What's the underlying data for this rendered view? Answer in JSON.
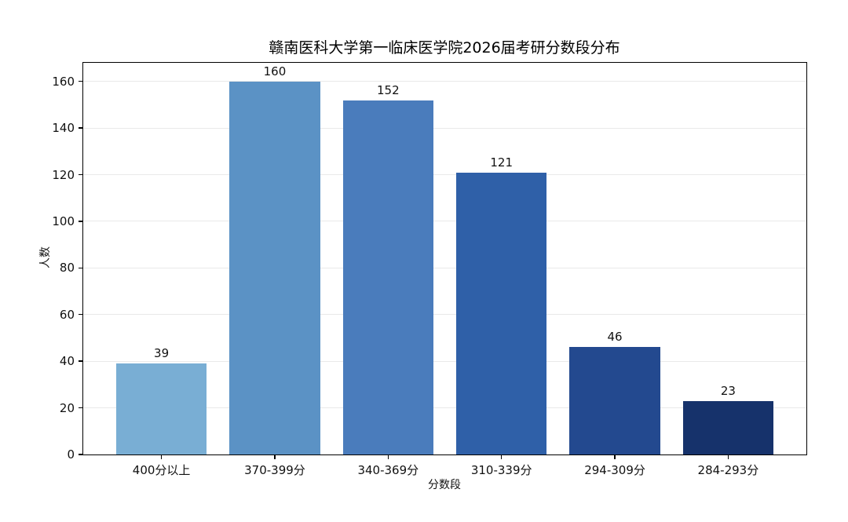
{
  "chart_data": {
    "type": "bar",
    "title": "赣南医科大学第一临床医学院2026届考研分数段分布",
    "xlabel": "分数段",
    "ylabel": "人数",
    "categories": [
      "400分以上",
      "370-399分",
      "340-369分",
      "310-339分",
      "294-309分",
      "284-293分"
    ],
    "values": [
      39,
      160,
      152,
      121,
      46,
      23
    ],
    "bar_colors": [
      "#79aed4",
      "#5b92c5",
      "#4a7cbc",
      "#2f60a8",
      "#23498f",
      "#16326b"
    ],
    "ylim": [
      0,
      168
    ],
    "yticks": [
      0,
      20,
      40,
      60,
      80,
      100,
      120,
      140,
      160
    ],
    "grid": "horizontal",
    "grid_color": "#e9e9e9",
    "legend": "none",
    "bar_width_fraction": 0.8,
    "value_label_color": "#111111"
  }
}
